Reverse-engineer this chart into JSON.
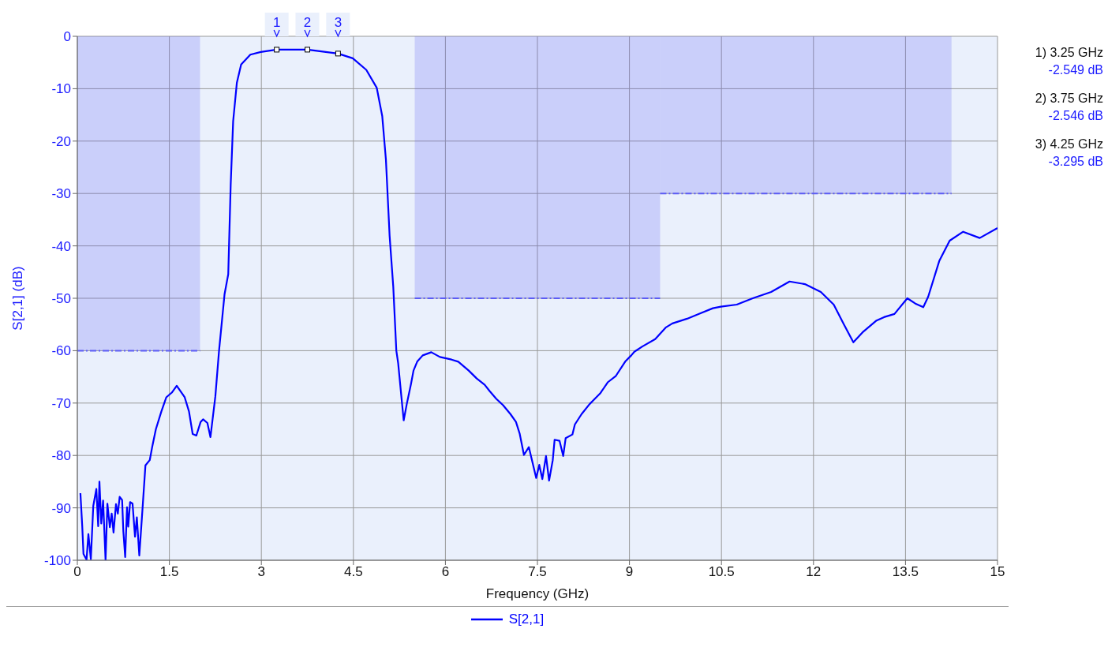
{
  "chart_data": {
    "type": "line",
    "xlabel": "Frequency (GHz)",
    "ylabel": "S[2,1] (dB)",
    "xlim": [
      0,
      15
    ],
    "ylim": [
      -100,
      0
    ],
    "xticks": [
      0,
      1.5,
      3,
      4.5,
      6,
      7.5,
      9,
      10.5,
      12,
      13.5,
      15
    ],
    "yticks": [
      -100,
      -90,
      -80,
      -70,
      -60,
      -50,
      -40,
      -30,
      -20,
      -10,
      0
    ],
    "grid": true,
    "legend": "bottom",
    "marker": "none",
    "line_style": "solid",
    "series": [
      {
        "name": "S[2,1]",
        "color": "#0000ff",
        "x": [
          0.05,
          0.08,
          0.1,
          0.15,
          0.18,
          0.22,
          0.26,
          0.31,
          0.34,
          0.36,
          0.39,
          0.42,
          0.46,
          0.49,
          0.53,
          0.56,
          0.59,
          0.63,
          0.66,
          0.69,
          0.73,
          0.75,
          0.78,
          0.81,
          0.83,
          0.86,
          0.9,
          0.94,
          0.97,
          1.01,
          1.06,
          1.11,
          1.18,
          1.22,
          1.28,
          1.37,
          1.45,
          1.54,
          1.62,
          1.75,
          1.82,
          1.88,
          1.94,
          2.01,
          2.05,
          2.12,
          2.17,
          2.25,
          2.31,
          2.4,
          2.46,
          2.5,
          2.54,
          2.6,
          2.67,
          2.82,
          2.99,
          3.25,
          3.75,
          4.25,
          4.49,
          4.71,
          4.88,
          4.97,
          5.03,
          5.09,
          5.15,
          5.2,
          5.23,
          5.29,
          5.32,
          5.37,
          5.44,
          5.48,
          5.54,
          5.63,
          5.77,
          5.91,
          6.1,
          6.21,
          6.38,
          6.51,
          6.64,
          6.72,
          6.83,
          6.94,
          7.06,
          7.15,
          7.21,
          7.28,
          7.36,
          7.48,
          7.53,
          7.58,
          7.64,
          7.69,
          7.75,
          7.78,
          7.86,
          7.92,
          7.96,
          8.07,
          8.11,
          8.22,
          8.35,
          8.52,
          8.65,
          8.78,
          8.93,
          9.03,
          9.08,
          9.21,
          9.42,
          9.59,
          9.7,
          9.94,
          10.15,
          10.36,
          10.49,
          10.75,
          11.01,
          11.31,
          11.61,
          11.86,
          12.12,
          12.33,
          12.5,
          12.65,
          12.8,
          13.02,
          13.15,
          13.32,
          13.53,
          13.66,
          13.79,
          13.87,
          14.05,
          14.22,
          14.44,
          14.71,
          15
        ],
        "values": [
          -87.2,
          -93.5,
          -98.8,
          -99.9,
          -95,
          -99.8,
          -89.6,
          -86.4,
          -93.5,
          -85,
          -93,
          -88.6,
          -100,
          -89.2,
          -93.7,
          -91.1,
          -94.7,
          -89.3,
          -91.1,
          -87.9,
          -88.5,
          -94.5,
          -99.4,
          -89.9,
          -93.6,
          -88.9,
          -89.2,
          -95.5,
          -91.8,
          -99.1,
          -90.6,
          -81.9,
          -80.9,
          -78.4,
          -75,
          -71.6,
          -68.9,
          -68,
          -66.7,
          -68.9,
          -71.6,
          -75.9,
          -76.2,
          -73.6,
          -73.1,
          -73.8,
          -76.5,
          -68.7,
          -60,
          -49.2,
          -45.4,
          -28.3,
          -16.2,
          -8.9,
          -5.4,
          -3.5,
          -3,
          -2.549,
          -2.546,
          -3.295,
          -4.2,
          -6.4,
          -9.8,
          -15.2,
          -23.5,
          -38,
          -47.8,
          -60,
          -62.4,
          -69.7,
          -73.3,
          -70.2,
          -66.3,
          -63.8,
          -62.1,
          -60.9,
          -60.3,
          -61.2,
          -61.7,
          -62.1,
          -63.8,
          -65.3,
          -66.5,
          -67.7,
          -69.2,
          -70.4,
          -72.1,
          -73.6,
          -75.8,
          -79.9,
          -78.4,
          -84.3,
          -81.8,
          -84.5,
          -80.1,
          -84.8,
          -80.9,
          -77,
          -77.2,
          -80.1,
          -76.7,
          -76,
          -74.1,
          -72.1,
          -70.2,
          -68.2,
          -66,
          -64.8,
          -62.1,
          -60.9,
          -60.2,
          -59.2,
          -57.8,
          -55.6,
          -54.8,
          -53.9,
          -52.9,
          -51.9,
          -51.6,
          -51.2,
          -50,
          -48.8,
          -46.8,
          -47.3,
          -48.8,
          -51.2,
          -55.1,
          -58.4,
          -56.5,
          -54.3,
          -53.6,
          -53,
          -50,
          -51,
          -51.7,
          -49.7,
          -42.9,
          -39,
          -37.3,
          -38.5,
          -36.6
        ]
      },
      {
        "type": "area",
        "color": "#5c5cf5",
        "line_style": "dashed",
        "x": [
          0,
          2
        ],
        "values": [
          -60,
          -60
        ]
      },
      {
        "type": "area",
        "color": "#5c5cf5",
        "line_style": "dashed",
        "x": [
          5.5,
          9.5
        ],
        "values": [
          -50,
          -50
        ]
      },
      {
        "type": "area",
        "color": "#5c5cf5",
        "line_style": "dashed",
        "x": [
          9.5,
          14.25
        ],
        "values": [
          -30,
          -30
        ]
      }
    ],
    "annotations": [
      {
        "text": "1",
        "x": 3.25,
        "y": -2.549
      },
      {
        "text": "2",
        "x": 3.75,
        "y": -2.546
      },
      {
        "text": "3",
        "x": 4.25,
        "y": -3.295
      },
      "1) 3.25 GHz\n-2.549 dB",
      "2) 3.75 GHz\n-2.546 dB",
      "3) 4.25 GHz\n-3.295 dB"
    ]
  }
}
